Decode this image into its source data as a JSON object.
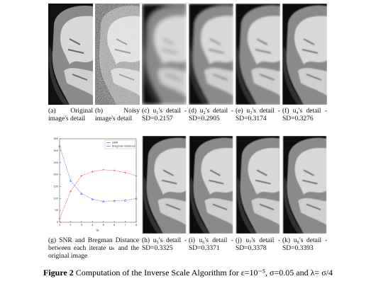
{
  "captions": [
    "(a) Original image's detail",
    "(b) Noisy image's detail",
    "(c) u₁'s detail - SD=0.2157",
    "(d) u₂'s detail - SD=0.2905",
    "(e) u₃'s detail - SD=0.3174",
    "(f) u₄'s detail - SD=0.3276",
    "(g) SNR and Bregman Distance between each iterate uₖ and the original image",
    "(h) u₅'s detail - SD=0.3325",
    "(i) u₆'s detail - SD=0.3371",
    "(j) u₇'s detail - SD=0.3378",
    "(k) u₈'s detail - SD=0.3393"
  ],
  "figure_caption": {
    "label": "Figure 2",
    "text": "Computation of the Inverse Scale Algorithm for ε=10⁻⁵, σ=0.05 and λ= σ/4"
  },
  "chart_data": {
    "type": "line",
    "xlabel": "uₖ",
    "x": [
      1,
      2,
      3,
      4,
      5,
      6,
      7,
      8
    ],
    "series": [
      {
        "name": "SNR",
        "color": "#e04040",
        "values": [
          15,
          130,
          195,
          212,
          220,
          217,
          208,
          195
        ]
      },
      {
        "name": "Bregman Distance",
        "color": "#5060d0",
        "values": [
          320,
          175,
          120,
          97,
          88,
          90,
          92,
          100
        ]
      }
    ],
    "xlim": [
      1,
      8
    ],
    "xticks": [
      1,
      2,
      3,
      4,
      5,
      6,
      7,
      8
    ],
    "ylim": [
      0,
      350
    ],
    "yticks": [
      0,
      50,
      100,
      150,
      200,
      250,
      300,
      350
    ],
    "legend": "top-right"
  }
}
